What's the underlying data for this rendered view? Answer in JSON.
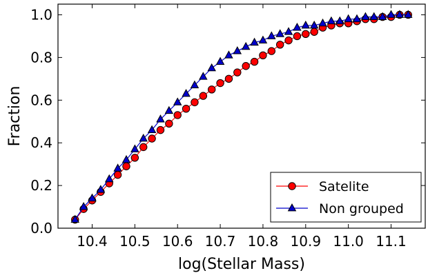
{
  "chart_data": {
    "type": "line",
    "title": "",
    "xlabel": "log(Stellar Mass)",
    "ylabel": "Fraction",
    "xlim": [
      10.32,
      11.18
    ],
    "ylim": [
      0.0,
      1.05
    ],
    "x_ticks": [
      "10.4",
      "10.5",
      "10.6",
      "10.7",
      "10.8",
      "10.9",
      "11.0",
      "11.1"
    ],
    "y_ticks": [
      "0.0",
      "0.2",
      "0.4",
      "0.6",
      "0.8",
      "1.0"
    ],
    "grid": false,
    "legend_position": "bottom-right",
    "x": [
      10.36,
      10.38,
      10.4,
      10.42,
      10.44,
      10.46,
      10.48,
      10.5,
      10.52,
      10.54,
      10.56,
      10.58,
      10.6,
      10.62,
      10.64,
      10.66,
      10.68,
      10.7,
      10.72,
      10.74,
      10.76,
      10.78,
      10.8,
      10.82,
      10.84,
      10.86,
      10.88,
      10.9,
      10.92,
      10.94,
      10.96,
      10.98,
      11.0,
      11.02,
      11.04,
      11.06,
      11.08,
      11.1,
      11.12,
      11.14
    ],
    "series": [
      {
        "name": "Satelite",
        "color": "#ff0000",
        "marker": "circle",
        "line_color": "#ff0000",
        "values": [
          0.04,
          0.09,
          0.13,
          0.17,
          0.21,
          0.25,
          0.29,
          0.33,
          0.38,
          0.42,
          0.46,
          0.49,
          0.53,
          0.56,
          0.59,
          0.62,
          0.65,
          0.68,
          0.7,
          0.73,
          0.76,
          0.78,
          0.81,
          0.83,
          0.86,
          0.88,
          0.9,
          0.91,
          0.92,
          0.94,
          0.95,
          0.96,
          0.96,
          0.97,
          0.98,
          0.98,
          0.99,
          0.99,
          1.0,
          1.0
        ]
      },
      {
        "name": "Non grouped",
        "color": "#0000cc",
        "marker": "triangle",
        "line_color": "#0000cc",
        "values": [
          0.04,
          0.1,
          0.14,
          0.18,
          0.23,
          0.28,
          0.32,
          0.37,
          0.42,
          0.46,
          0.51,
          0.55,
          0.59,
          0.63,
          0.67,
          0.71,
          0.75,
          0.78,
          0.81,
          0.83,
          0.85,
          0.87,
          0.88,
          0.9,
          0.91,
          0.92,
          0.94,
          0.95,
          0.95,
          0.96,
          0.97,
          0.97,
          0.98,
          0.98,
          0.99,
          0.99,
          0.99,
          1.0,
          1.0,
          1.0
        ]
      }
    ]
  }
}
